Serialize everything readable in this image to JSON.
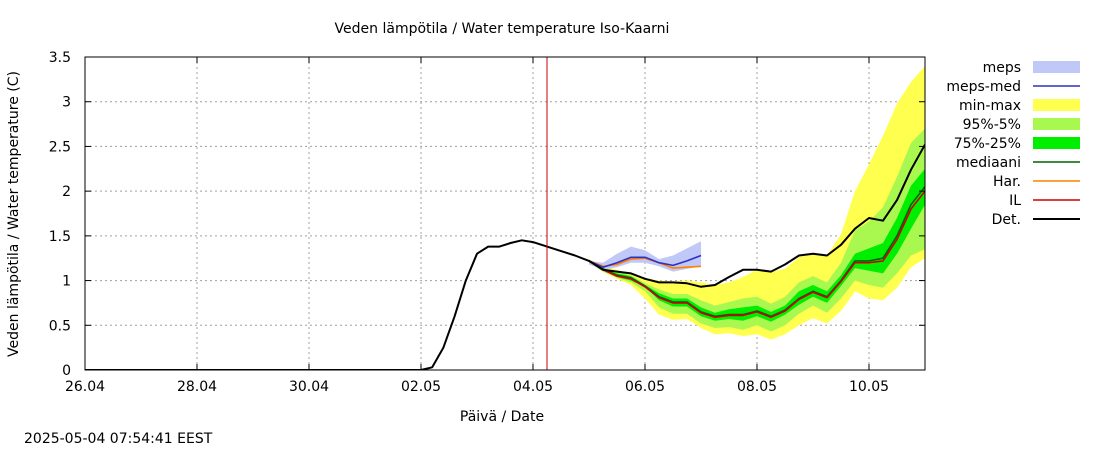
{
  "timestamp": "2025-05-04 07:54:41 EEST",
  "chart_data": {
    "type": "area",
    "title": "Veden lämpötila / Water temperature Iso-Kaarni",
    "xlabel": "Päivä / Date",
    "ylabel": "Veden lämpötila / Water temperature (C)",
    "x_unit": "days since 26.04 00:00",
    "xlim": [
      0,
      15
    ],
    "ylim": [
      0,
      3.5
    ],
    "x_ticks": [
      {
        "x": 0,
        "label": "26.04"
      },
      {
        "x": 2,
        "label": "28.04"
      },
      {
        "x": 4,
        "label": "30.04"
      },
      {
        "x": 6,
        "label": "02.05"
      },
      {
        "x": 8,
        "label": "04.05"
      },
      {
        "x": 10,
        "label": "06.05"
      },
      {
        "x": 12,
        "label": "08.05"
      },
      {
        "x": 14,
        "label": "10.05"
      }
    ],
    "y_ticks": [
      {
        "y": 0,
        "label": "0"
      },
      {
        "y": 0.5,
        "label": "0.5"
      },
      {
        "y": 1,
        "label": "1"
      },
      {
        "y": 1.5,
        "label": "1.5"
      },
      {
        "y": 2,
        "label": "2"
      },
      {
        "y": 2.5,
        "label": "2.5"
      },
      {
        "y": 3,
        "label": "3"
      },
      {
        "y": 3.5,
        "label": "3.5"
      }
    ],
    "grid": true,
    "legend_position": "right",
    "current_time_x": 8.25,
    "current_time_color": "#cc0000",
    "x": [
      0,
      6.0,
      6.2,
      6.4,
      6.6,
      6.8,
      7.0,
      7.2,
      7.4,
      7.6,
      7.8,
      8.0,
      8.25,
      8.5,
      8.75,
      9.0,
      9.25,
      9.5,
      9.75,
      10.0,
      10.25,
      10.5,
      10.75,
      11.0,
      11.25,
      11.5,
      11.75,
      12.0,
      12.25,
      12.5,
      12.75,
      13.0,
      13.25,
      13.5,
      13.75,
      14.0,
      14.25,
      14.5,
      14.75,
      15.0
    ],
    "bands": [
      {
        "name": "min-max",
        "color": "#ffff50",
        "lower": [
          null,
          null,
          null,
          null,
          null,
          null,
          null,
          null,
          null,
          null,
          null,
          null,
          null,
          null,
          null,
          1.2,
          1.1,
          1.02,
          0.95,
          0.8,
          0.62,
          0.56,
          0.57,
          0.47,
          0.4,
          0.41,
          0.38,
          0.4,
          0.34,
          0.4,
          0.5,
          0.58,
          0.52,
          0.66,
          0.88,
          0.8,
          0.78,
          0.92,
          1.15,
          1.25
        ],
        "upper": [
          null,
          null,
          null,
          null,
          null,
          null,
          null,
          null,
          null,
          null,
          null,
          null,
          null,
          null,
          null,
          1.24,
          1.16,
          1.12,
          1.07,
          1.03,
          1.0,
          0.99,
          1.0,
          0.98,
          0.95,
          0.98,
          1.04,
          1.12,
          1.1,
          1.13,
          1.26,
          1.3,
          1.28,
          1.52,
          2.0,
          2.3,
          2.62,
          2.98,
          3.22,
          3.4
        ]
      },
      {
        "name": "95%-5%",
        "color": "#a8f850",
        "lower": [
          null,
          null,
          null,
          null,
          null,
          null,
          null,
          null,
          null,
          null,
          null,
          null,
          null,
          null,
          null,
          1.2,
          1.1,
          1.03,
          0.98,
          0.88,
          0.7,
          0.63,
          0.63,
          0.52,
          0.47,
          0.48,
          0.45,
          0.5,
          0.43,
          0.5,
          0.63,
          0.72,
          0.64,
          0.8,
          1.0,
          0.95,
          0.92,
          1.08,
          1.28,
          1.35
        ],
        "upper": [
          null,
          null,
          null,
          null,
          null,
          null,
          null,
          null,
          null,
          null,
          null,
          null,
          null,
          null,
          null,
          1.23,
          1.14,
          1.1,
          1.06,
          0.97,
          0.9,
          0.85,
          0.85,
          0.78,
          0.72,
          0.76,
          0.8,
          0.82,
          0.74,
          0.82,
          0.98,
          1.05,
          0.98,
          1.2,
          1.56,
          1.66,
          1.82,
          2.16,
          2.54,
          2.7
        ]
      },
      {
        "name": "75%-25%",
        "color": "#00ee00",
        "lower": [
          null,
          null,
          null,
          null,
          null,
          null,
          null,
          null,
          null,
          null,
          null,
          null,
          null,
          null,
          null,
          1.21,
          1.12,
          1.04,
          1.0,
          0.93,
          0.78,
          0.71,
          0.71,
          0.6,
          0.55,
          0.57,
          0.55,
          0.6,
          0.54,
          0.62,
          0.73,
          0.82,
          0.75,
          0.94,
          1.14,
          1.11,
          1.08,
          1.3,
          1.58,
          1.85
        ],
        "upper": [
          null,
          null,
          null,
          null,
          null,
          null,
          null,
          null,
          null,
          null,
          null,
          null,
          null,
          null,
          null,
          1.22,
          1.13,
          1.08,
          1.05,
          0.95,
          0.86,
          0.8,
          0.8,
          0.7,
          0.64,
          0.68,
          0.7,
          0.72,
          0.65,
          0.72,
          0.88,
          0.95,
          0.88,
          1.06,
          1.3,
          1.36,
          1.42,
          1.7,
          2.06,
          2.25
        ]
      },
      {
        "name": "meps",
        "color": "#c0c8f8",
        "lower": [
          null,
          null,
          null,
          null,
          null,
          null,
          null,
          null,
          null,
          null,
          null,
          null,
          null,
          null,
          null,
          1.18,
          1.12,
          1.15,
          1.2,
          1.2,
          1.16,
          1.1,
          1.13,
          1.16,
          null,
          null,
          null,
          null,
          null,
          null,
          null,
          null,
          null,
          null,
          null,
          null,
          null,
          null,
          null,
          null
        ],
        "upper": [
          null,
          null,
          null,
          null,
          null,
          null,
          null,
          null,
          null,
          null,
          null,
          null,
          null,
          null,
          null,
          1.22,
          1.2,
          1.3,
          1.38,
          1.34,
          1.24,
          1.28,
          1.36,
          1.44,
          null,
          null,
          null,
          null,
          null,
          null,
          null,
          null,
          null,
          null,
          null,
          null,
          null,
          null,
          null,
          null
        ]
      }
    ],
    "series": [
      {
        "name": "mediaani",
        "color": "#006400",
        "values": [
          null,
          null,
          null,
          null,
          null,
          null,
          null,
          null,
          null,
          null,
          null,
          null,
          null,
          null,
          null,
          1.22,
          1.13,
          1.06,
          1.03,
          0.94,
          0.82,
          0.76,
          0.76,
          0.65,
          0.6,
          0.62,
          0.62,
          0.66,
          0.6,
          0.67,
          0.8,
          0.88,
          0.82,
          1.0,
          1.22,
          1.22,
          1.25,
          1.5,
          1.85,
          2.05
        ]
      },
      {
        "name": "IL",
        "color": "#cc0000",
        "values": [
          null,
          null,
          null,
          null,
          null,
          null,
          null,
          null,
          null,
          null,
          null,
          null,
          null,
          null,
          null,
          1.22,
          1.12,
          1.05,
          1.02,
          0.93,
          0.81,
          0.75,
          0.75,
          0.64,
          0.59,
          0.61,
          0.61,
          0.65,
          0.59,
          0.66,
          0.79,
          0.87,
          0.81,
          0.99,
          1.2,
          1.2,
          1.22,
          1.46,
          1.8,
          2.0
        ]
      },
      {
        "name": "Har.",
        "color": "#ff8000",
        "values": [
          null,
          null,
          null,
          null,
          null,
          null,
          null,
          null,
          null,
          null,
          null,
          null,
          null,
          null,
          null,
          1.22,
          1.16,
          1.18,
          1.24,
          1.25,
          1.2,
          1.14,
          1.15,
          1.16,
          null,
          null,
          null,
          null,
          null,
          null,
          null,
          null,
          null,
          null,
          null,
          null,
          null,
          null,
          null,
          null
        ]
      },
      {
        "name": "meps-med",
        "color": "#3030c0",
        "values": [
          null,
          null,
          null,
          null,
          null,
          null,
          null,
          null,
          null,
          null,
          null,
          null,
          null,
          null,
          null,
          1.22,
          1.15,
          1.2,
          1.26,
          1.26,
          1.2,
          1.17,
          1.22,
          1.28,
          null,
          null,
          null,
          null,
          null,
          null,
          null,
          null,
          null,
          null,
          null,
          null,
          null,
          null,
          null,
          null
        ]
      },
      {
        "name": "Det.",
        "color": "#000000",
        "values": [
          0.0,
          0.0,
          0.03,
          0.25,
          0.6,
          1.0,
          1.3,
          1.38,
          1.38,
          1.42,
          1.45,
          1.43,
          1.38,
          1.33,
          1.28,
          1.22,
          1.12,
          1.1,
          1.08,
          1.02,
          0.98,
          0.98,
          0.97,
          0.93,
          0.95,
          1.04,
          1.12,
          1.12,
          1.1,
          1.18,
          1.28,
          1.3,
          1.28,
          1.4,
          1.58,
          1.7,
          1.67,
          1.9,
          2.24,
          2.52
        ]
      }
    ],
    "legend": [
      {
        "name": "meps",
        "kind": "band",
        "color": "#c0c8f8"
      },
      {
        "name": "meps-med",
        "kind": "line",
        "color": "#3030c0"
      },
      {
        "name": "min-max",
        "kind": "band",
        "color": "#ffff50"
      },
      {
        "name": "95%-5%",
        "kind": "band",
        "color": "#a8f850"
      },
      {
        "name": "75%-25%",
        "kind": "band",
        "color": "#00ee00"
      },
      {
        "name": "mediaani",
        "kind": "line",
        "color": "#006400"
      },
      {
        "name": "Har.",
        "kind": "line",
        "color": "#ff8000"
      },
      {
        "name": "IL",
        "kind": "line",
        "color": "#cc0000"
      },
      {
        "name": "Det.",
        "kind": "line",
        "color": "#000000"
      }
    ]
  }
}
